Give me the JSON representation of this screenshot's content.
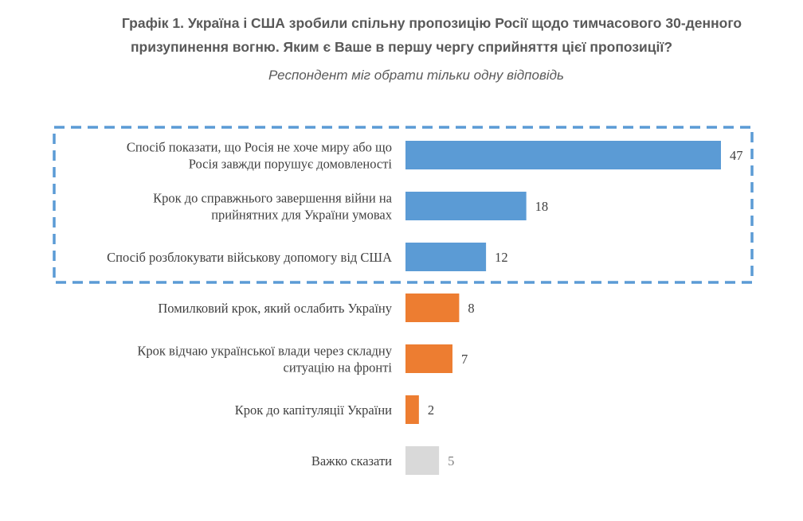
{
  "title_lines": [
    "Графік 1. Україна і США зробили спільну пропозицію Росії щодо тимчасового 30-денного",
    "призупинення вогню. Яким є Ваше в першу чергу сприйняття цієї пропозиції?"
  ],
  "subtitle": "Респондент міг обрати тільки одну відповідь",
  "colors": {
    "blue": "#5b9bd5",
    "orange": "#ed7d31",
    "gray": "#d9d9d9",
    "highlight_border": "#5b9bd5"
  },
  "chart_data": {
    "type": "bar",
    "orientation": "horizontal",
    "xlim": [
      0,
      50
    ],
    "categories": [
      [
        "Спосіб показати, що Росія не хоче миру або що",
        "Росія завжди порушує домовленості"
      ],
      [
        "Крок до справжнього завершення війни на",
        "прийнятних для України умовах"
      ],
      [
        "Спосіб розблокувати військову допомогу від США"
      ],
      [
        "Помилковий крок, який ослабить Україну"
      ],
      [
        "Крок відчаю української влади через складну",
        "ситуацію на фронті"
      ],
      [
        "Крок до капітуляції України"
      ],
      [
        "Важко сказати"
      ]
    ],
    "values": [
      47,
      18,
      12,
      8,
      7,
      2,
      5
    ],
    "bar_colors": [
      "blue",
      "blue",
      "blue",
      "orange",
      "orange",
      "orange",
      "gray"
    ],
    "value_label_colors": [
      "#404040",
      "#404040",
      "#404040",
      "#404040",
      "#404040",
      "#404040",
      "#808080"
    ],
    "highlighted_categories": [
      0,
      1,
      2
    ]
  }
}
